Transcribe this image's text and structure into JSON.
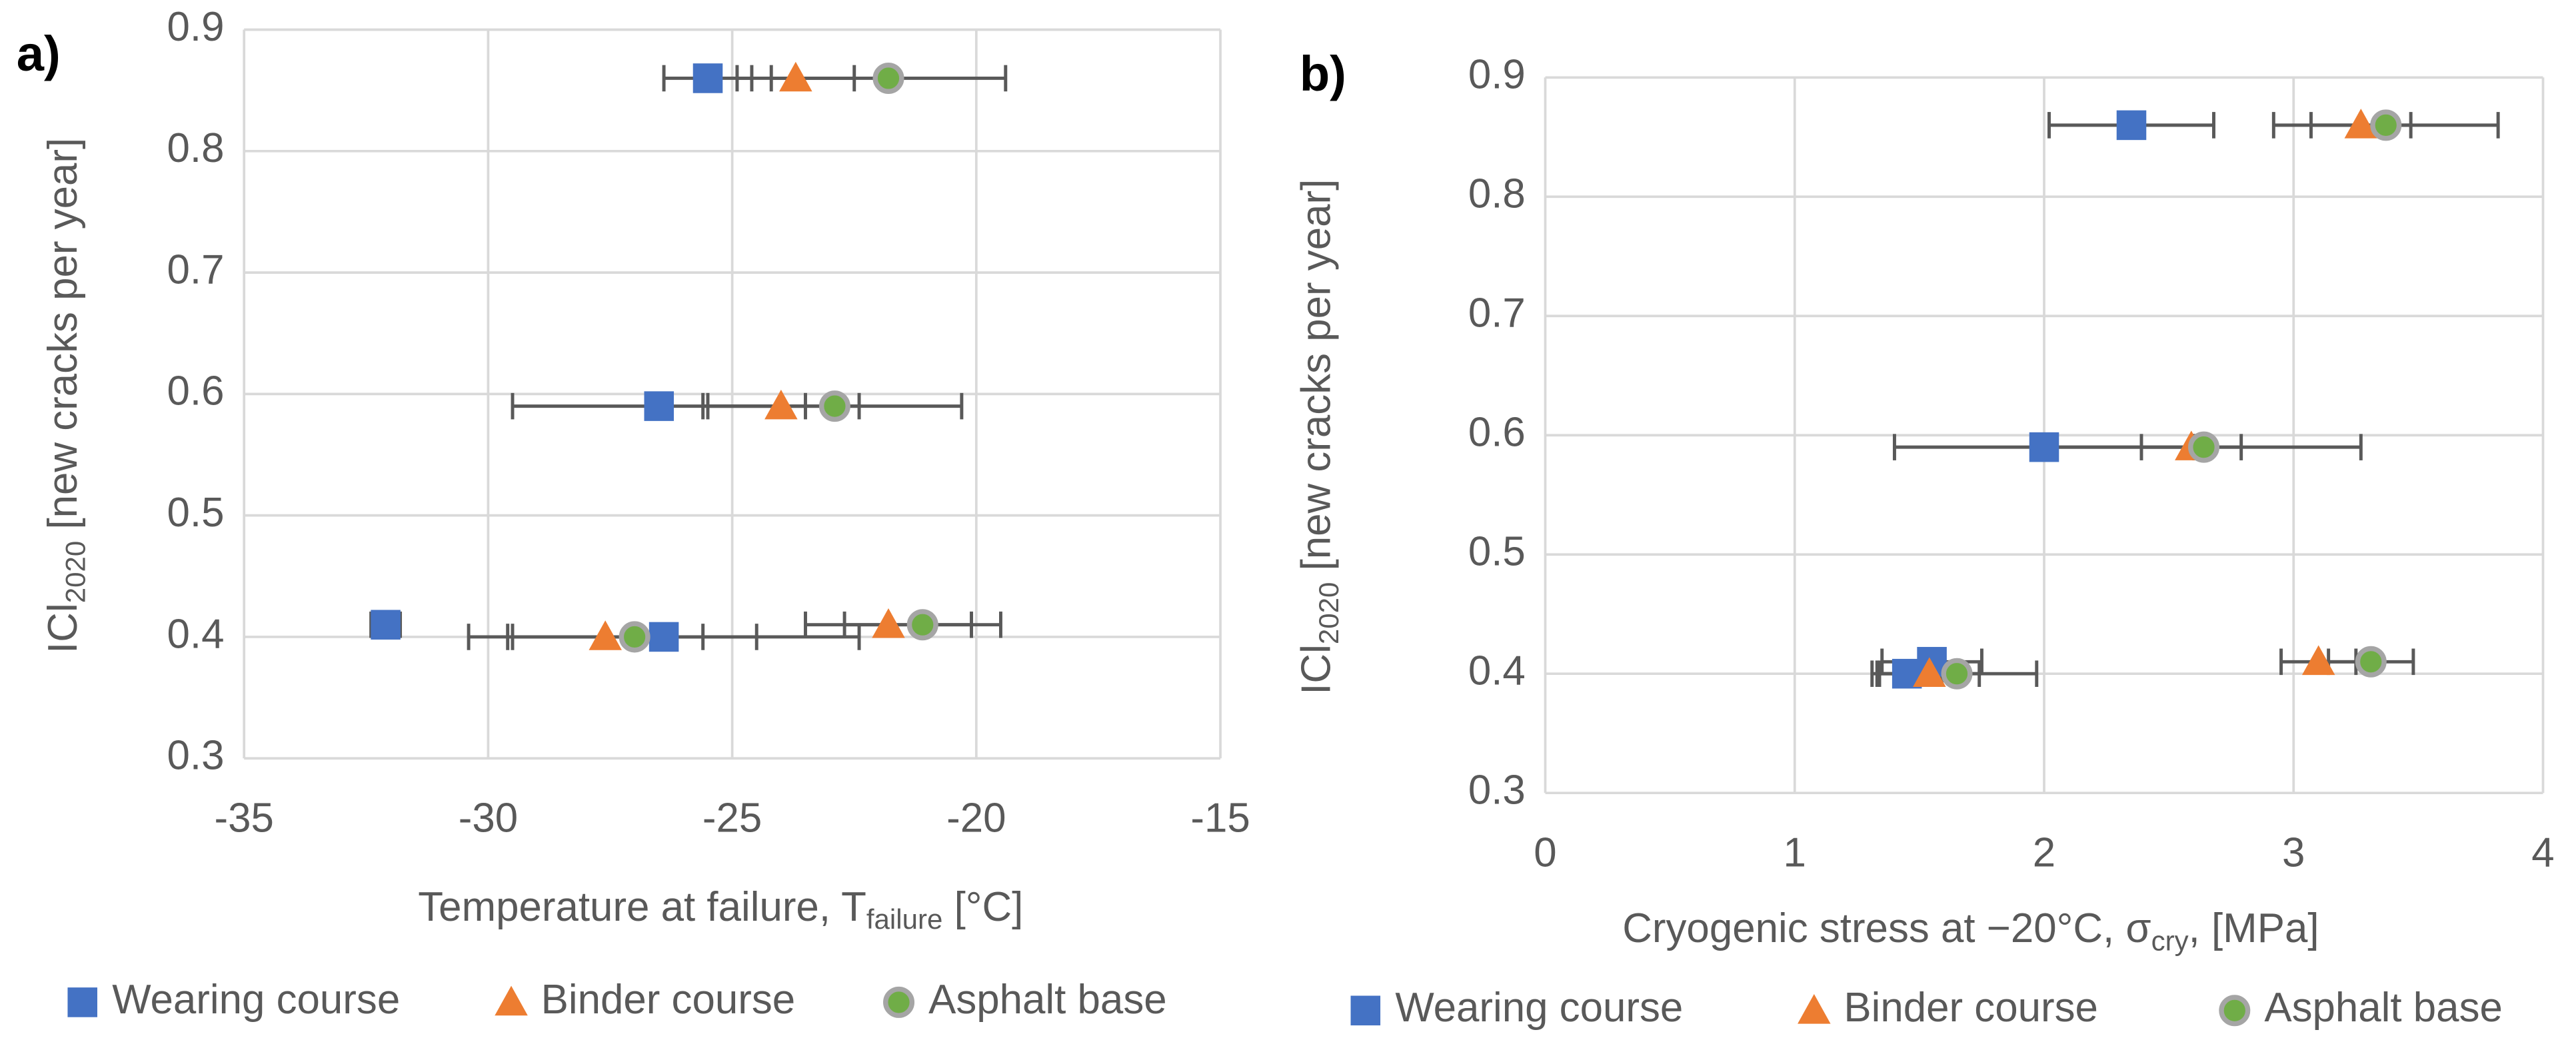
{
  "chart_data": [
    {
      "type": "scatter",
      "panel_label": "a)",
      "xlabel": {
        "main": "Temperature at failure, T",
        "sub": "failure",
        "rest": " [°C]"
      },
      "ylabel": {
        "main": "ICl",
        "sub": "2020",
        "rest": " [new cracks per year]"
      },
      "xlim": [
        -35,
        -15
      ],
      "xticks": [
        -35,
        -30,
        -25,
        -20,
        -15
      ],
      "ylim": [
        0.3,
        0.9
      ],
      "yticks": [
        0.3,
        0.4,
        0.5,
        0.6,
        0.7,
        0.8,
        0.9
      ],
      "grid": true,
      "legend": "bottom",
      "series": [
        {
          "name": "Wearing course",
          "color": "#4472c4",
          "marker": "square",
          "x": [
            -25.5,
            -26.5,
            -32.1,
            -26.4
          ],
          "values": [
            0.86,
            0.59,
            0.41,
            0.4
          ],
          "xerr": [
            0.9,
            3.0,
            0.3,
            4.0
          ]
        },
        {
          "name": "Binder course",
          "color": "#ed7d31",
          "marker": "triangle",
          "x": [
            -23.7,
            -24.0,
            -21.8,
            -27.6
          ],
          "values": [
            0.86,
            0.59,
            0.41,
            0.4
          ],
          "xerr": [
            1.2,
            1.6,
            1.7,
            2.0
          ]
        },
        {
          "name": "Asphalt base",
          "color": "#70ad47",
          "marker": "circle",
          "x": [
            -21.8,
            -22.9,
            -21.1,
            -27.0
          ],
          "values": [
            0.86,
            0.59,
            0.41,
            0.4
          ],
          "xerr": [
            2.4,
            2.6,
            1.6,
            2.5
          ]
        }
      ]
    },
    {
      "type": "scatter",
      "panel_label": "b)",
      "xlabel": {
        "main": "Cryogenic stress at −20°C, σ",
        "sub": "cry",
        "rest": ", [MPa]"
      },
      "ylabel": {
        "main": "ICl",
        "sub": "2020",
        "rest": " [new cracks per year]"
      },
      "xlim": [
        0,
        4
      ],
      "xticks": [
        0,
        1,
        2,
        3,
        4
      ],
      "ylim": [
        0.3,
        0.9
      ],
      "yticks": [
        0.3,
        0.4,
        0.5,
        0.6,
        0.7,
        0.8,
        0.9
      ],
      "grid": true,
      "legend": "bottom",
      "series": [
        {
          "name": "Wearing course",
          "color": "#4472c4",
          "marker": "square",
          "x": [
            2.35,
            2.0,
            1.55,
            1.45
          ],
          "values": [
            0.86,
            0.59,
            0.41,
            0.4
          ],
          "xerr": [
            0.33,
            0.6,
            0.2,
            0.14
          ]
        },
        {
          "name": "Binder course",
          "color": "#ed7d31",
          "marker": "triangle",
          "x": [
            3.27,
            2.59,
            3.1,
            1.54
          ],
          "values": [
            0.86,
            0.59,
            0.41,
            0.4
          ],
          "xerr": [
            0.2,
            0.2,
            0.15,
            0.2
          ]
        },
        {
          "name": "Asphalt base",
          "color": "#70ad47",
          "marker": "circle",
          "x": [
            3.37,
            2.64,
            3.31,
            1.65
          ],
          "values": [
            0.86,
            0.59,
            0.41,
            0.4
          ],
          "xerr": [
            0.45,
            0.63,
            0.17,
            0.32
          ]
        }
      ]
    }
  ]
}
